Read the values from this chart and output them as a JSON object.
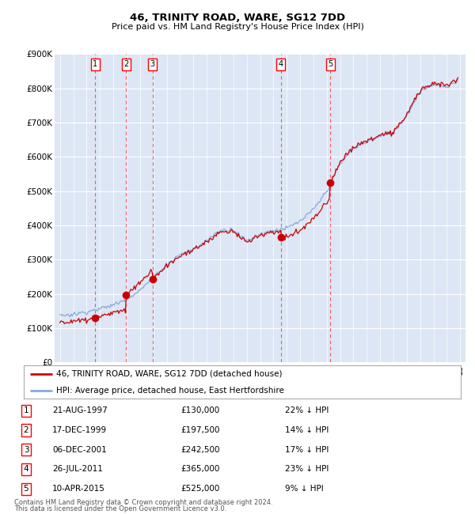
{
  "title1": "46, TRINITY ROAD, WARE, SG12 7DD",
  "title2": "Price paid vs. HM Land Registry's House Price Index (HPI)",
  "ylim": [
    0,
    900000
  ],
  "yticks": [
    0,
    100000,
    200000,
    300000,
    400000,
    500000,
    600000,
    700000,
    800000,
    900000
  ],
  "ytick_labels": [
    "£0",
    "£100K",
    "£200K",
    "£300K",
    "£400K",
    "£500K",
    "£600K",
    "£700K",
    "£800K",
    "£900K"
  ],
  "xlim_start": 1994.6,
  "xlim_end": 2025.4,
  "sales": [
    {
      "num": 1,
      "date": "21-AUG-1997",
      "year": 1997.64,
      "price": 130000,
      "pct": "22%"
    },
    {
      "num": 2,
      "date": "17-DEC-1999",
      "year": 1999.96,
      "price": 197500,
      "pct": "14%"
    },
    {
      "num": 3,
      "date": "06-DEC-2001",
      "year": 2001.93,
      "price": 242500,
      "pct": "17%"
    },
    {
      "num": 4,
      "date": "26-JUL-2011",
      "year": 2011.57,
      "price": 365000,
      "pct": "23%"
    },
    {
      "num": 5,
      "date": "10-APR-2015",
      "year": 2015.27,
      "price": 525000,
      "pct": "9%"
    }
  ],
  "legend_price_label": "46, TRINITY ROAD, WARE, SG12 7DD (detached house)",
  "legend_hpi_label": "HPI: Average price, detached house, East Hertfordshire",
  "footer1": "Contains HM Land Registry data © Crown copyright and database right 2024.",
  "footer2": "This data is licensed under the Open Government Licence v3.0.",
  "price_color": "#cc0000",
  "hpi_color": "#88aadd",
  "background_color": "#dce6f5",
  "plot_bg_color": "#ffffff",
  "hpi_anchors": [
    [
      1995.0,
      137000
    ],
    [
      1996.0,
      140000
    ],
    [
      1997.0,
      148000
    ],
    [
      1998.0,
      157000
    ],
    [
      1999.0,
      168000
    ],
    [
      2000.0,
      185000
    ],
    [
      2001.0,
      210000
    ],
    [
      2002.0,
      248000
    ],
    [
      2003.0,
      285000
    ],
    [
      2004.0,
      315000
    ],
    [
      2005.0,
      330000
    ],
    [
      2006.0,
      355000
    ],
    [
      2007.0,
      385000
    ],
    [
      2008.0,
      390000
    ],
    [
      2008.5,
      370000
    ],
    [
      2009.0,
      355000
    ],
    [
      2009.5,
      365000
    ],
    [
      2010.0,
      375000
    ],
    [
      2011.0,
      385000
    ],
    [
      2012.0,
      390000
    ],
    [
      2013.0,
      410000
    ],
    [
      2014.0,
      445000
    ],
    [
      2015.0,
      500000
    ],
    [
      2016.0,
      580000
    ],
    [
      2017.0,
      625000
    ],
    [
      2018.0,
      645000
    ],
    [
      2019.0,
      660000
    ],
    [
      2020.0,
      670000
    ],
    [
      2021.0,
      720000
    ],
    [
      2022.0,
      790000
    ],
    [
      2023.0,
      810000
    ],
    [
      2024.0,
      800000
    ],
    [
      2024.75,
      820000
    ]
  ]
}
